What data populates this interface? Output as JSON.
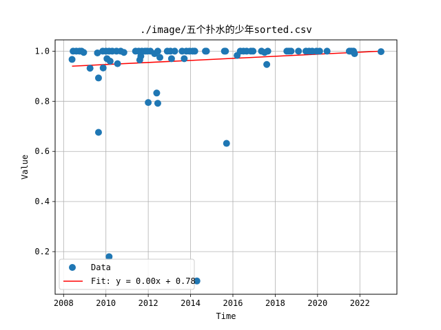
{
  "chart_data": {
    "type": "scatter",
    "title": "./image/五个扑水的少年sorted.csv",
    "xlabel": "Time",
    "ylabel": "Value",
    "xlim": [
      2007.6,
      2023.75
    ],
    "ylim": [
      0.03,
      1.045
    ],
    "x_ticks": [
      "2008",
      "2010",
      "2012",
      "2014",
      "2016",
      "2018",
      "2020",
      "2022"
    ],
    "y_ticks": [
      "0.2",
      "0.4",
      "0.6",
      "0.8",
      "1.0"
    ],
    "grid": true,
    "legend_position": "lower-left",
    "legend": {
      "data_label": "Data",
      "fit_label": "Fit: y = 0.00x + 0.78"
    },
    "colors": {
      "data": "#1f77b4",
      "fit": "#ff0000"
    },
    "fit_line": {
      "x": [
        2008.4,
        2023.0
      ],
      "y": [
        0.94,
        1.0
      ]
    },
    "series": [
      {
        "name": "Data",
        "points": [
          [
            2008.4,
            0.967
          ],
          [
            2008.45,
            1.0
          ],
          [
            2008.6,
            1.0
          ],
          [
            2008.75,
            1.0
          ],
          [
            2008.85,
            1.0
          ],
          [
            2008.95,
            0.995
          ],
          [
            2009.25,
            0.932
          ],
          [
            2009.6,
            0.993
          ],
          [
            2009.65,
            0.893
          ],
          [
            2009.65,
            0.676
          ],
          [
            2009.85,
            1.0
          ],
          [
            2009.87,
            0.933
          ],
          [
            2010.0,
            1.0
          ],
          [
            2010.05,
            0.97
          ],
          [
            2010.15,
            1.0
          ],
          [
            2010.2,
            0.96
          ],
          [
            2010.15,
            0.18
          ],
          [
            2010.3,
            1.0
          ],
          [
            2010.5,
            1.0
          ],
          [
            2010.55,
            0.95
          ],
          [
            2010.7,
            1.0
          ],
          [
            2010.85,
            0.995
          ],
          [
            2011.4,
            1.0
          ],
          [
            2011.55,
            1.0
          ],
          [
            2011.6,
            0.965
          ],
          [
            2011.65,
            0.98
          ],
          [
            2011.7,
            1.0
          ],
          [
            2011.85,
            1.0
          ],
          [
            2011.95,
            1.0
          ],
          [
            2012.0,
            0.795
          ],
          [
            2012.1,
            1.0
          ],
          [
            2012.3,
            0.99
          ],
          [
            2012.4,
            0.833
          ],
          [
            2012.45,
            0.792
          ],
          [
            2012.45,
            1.0
          ],
          [
            2012.55,
            0.975
          ],
          [
            2012.9,
            1.0
          ],
          [
            2013.05,
            1.0
          ],
          [
            2013.1,
            0.97
          ],
          [
            2013.25,
            1.0
          ],
          [
            2013.6,
            1.0
          ],
          [
            2013.7,
            0.97
          ],
          [
            2013.8,
            1.0
          ],
          [
            2013.95,
            1.0
          ],
          [
            2014.1,
            1.0
          ],
          [
            2014.2,
            1.0
          ],
          [
            2014.3,
            0.083
          ],
          [
            2014.7,
            1.0
          ],
          [
            2014.75,
            1.0
          ],
          [
            2015.6,
            1.0
          ],
          [
            2015.65,
            1.0
          ],
          [
            2015.7,
            0.632
          ],
          [
            2016.2,
            0.983
          ],
          [
            2016.35,
            1.0
          ],
          [
            2016.5,
            1.0
          ],
          [
            2016.65,
            1.0
          ],
          [
            2016.85,
            1.0
          ],
          [
            2016.95,
            1.0
          ],
          [
            2017.35,
            1.0
          ],
          [
            2017.5,
            0.995
          ],
          [
            2017.6,
            0.947
          ],
          [
            2017.65,
            1.0
          ],
          [
            2018.55,
            1.0
          ],
          [
            2018.65,
            1.0
          ],
          [
            2018.75,
            1.0
          ],
          [
            2019.1,
            1.0
          ],
          [
            2019.45,
            1.0
          ],
          [
            2019.6,
            1.0
          ],
          [
            2019.75,
            1.0
          ],
          [
            2019.95,
            1.0
          ],
          [
            2020.1,
            1.0
          ],
          [
            2020.45,
            1.0
          ],
          [
            2021.5,
            1.0
          ],
          [
            2021.6,
            1.0
          ],
          [
            2021.7,
            1.0
          ],
          [
            2021.75,
            0.99
          ],
          [
            2023.0,
            0.998
          ]
        ]
      }
    ]
  }
}
